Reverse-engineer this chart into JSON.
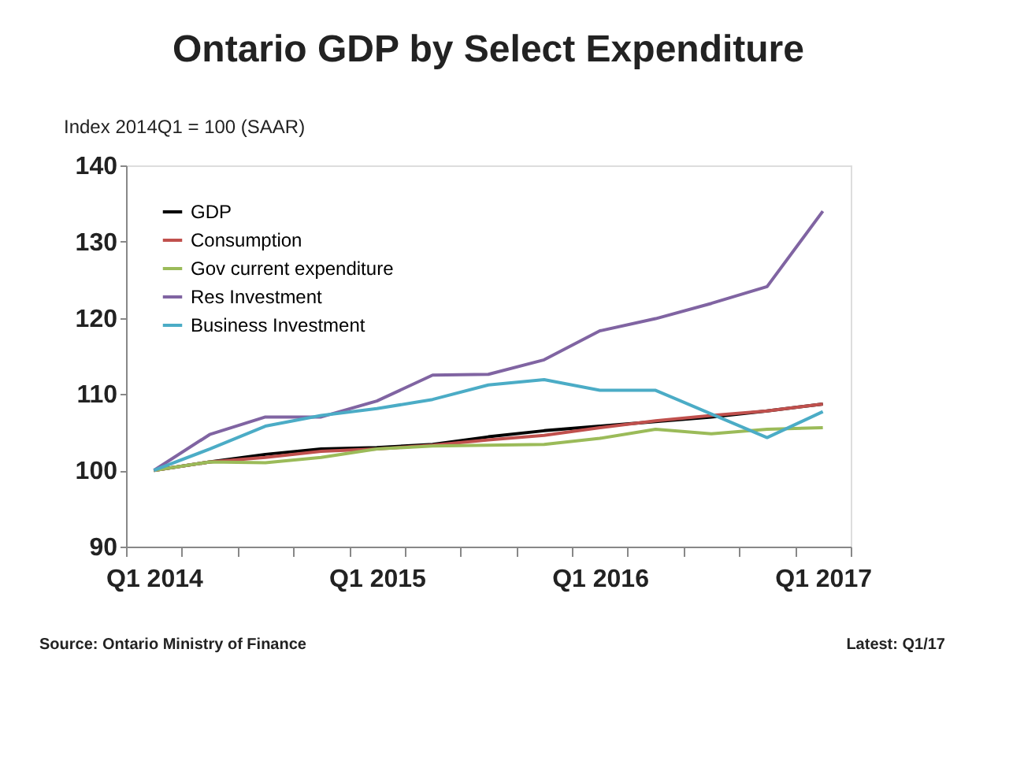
{
  "chart_data": {
    "type": "line",
    "title": "Ontario GDP by Select Expenditure",
    "ylabel": "Index 2014Q1 = 100  (SAAR)",
    "categories": [
      "Q1 2014",
      null,
      null,
      null,
      "Q1 2015",
      null,
      null,
      null,
      "Q1 2016",
      null,
      null,
      null,
      "Q1 2017"
    ],
    "series": [
      {
        "name": "GDP",
        "color": "#000000",
        "values": [
          100,
          101.1,
          102.1,
          102.8,
          103.0,
          103.4,
          104.4,
          105.2,
          105.8,
          106.4,
          107.0,
          107.8,
          108.7
        ]
      },
      {
        "name": "Consumption",
        "color": "#c0504d",
        "values": [
          100,
          101.1,
          101.7,
          102.5,
          102.8,
          103.3,
          104.0,
          104.6,
          105.6,
          106.5,
          107.2,
          107.8,
          108.7
        ]
      },
      {
        "name": "Gov current expenditure",
        "color": "#9bbb59",
        "values": [
          100,
          101.1,
          101.0,
          101.7,
          102.8,
          103.2,
          103.3,
          103.4,
          104.2,
          105.4,
          104.8,
          105.4,
          105.6
        ]
      },
      {
        "name": "Res Investment",
        "color": "#8064a2",
        "values": [
          100,
          104.7,
          107.0,
          107.0,
          109.1,
          112.5,
          112.6,
          114.5,
          118.3,
          119.9,
          121.9,
          124.1,
          134.0
        ]
      },
      {
        "name": "Business Investment",
        "color": "#4bacc6",
        "values": [
          100,
          102.8,
          105.8,
          107.2,
          108.1,
          109.3,
          111.2,
          111.9,
          110.5,
          110.5,
          107.4,
          104.3,
          107.7
        ]
      }
    ],
    "ylim": [
      90,
      140
    ],
    "yticks": [
      90,
      100,
      110,
      120,
      130,
      140
    ],
    "grid": false,
    "legend": "top left",
    "marker": "none",
    "line_style": "solid",
    "annotations": [
      "Source:  Ontario Ministry of Finance",
      "Latest: Q1/17"
    ]
  }
}
